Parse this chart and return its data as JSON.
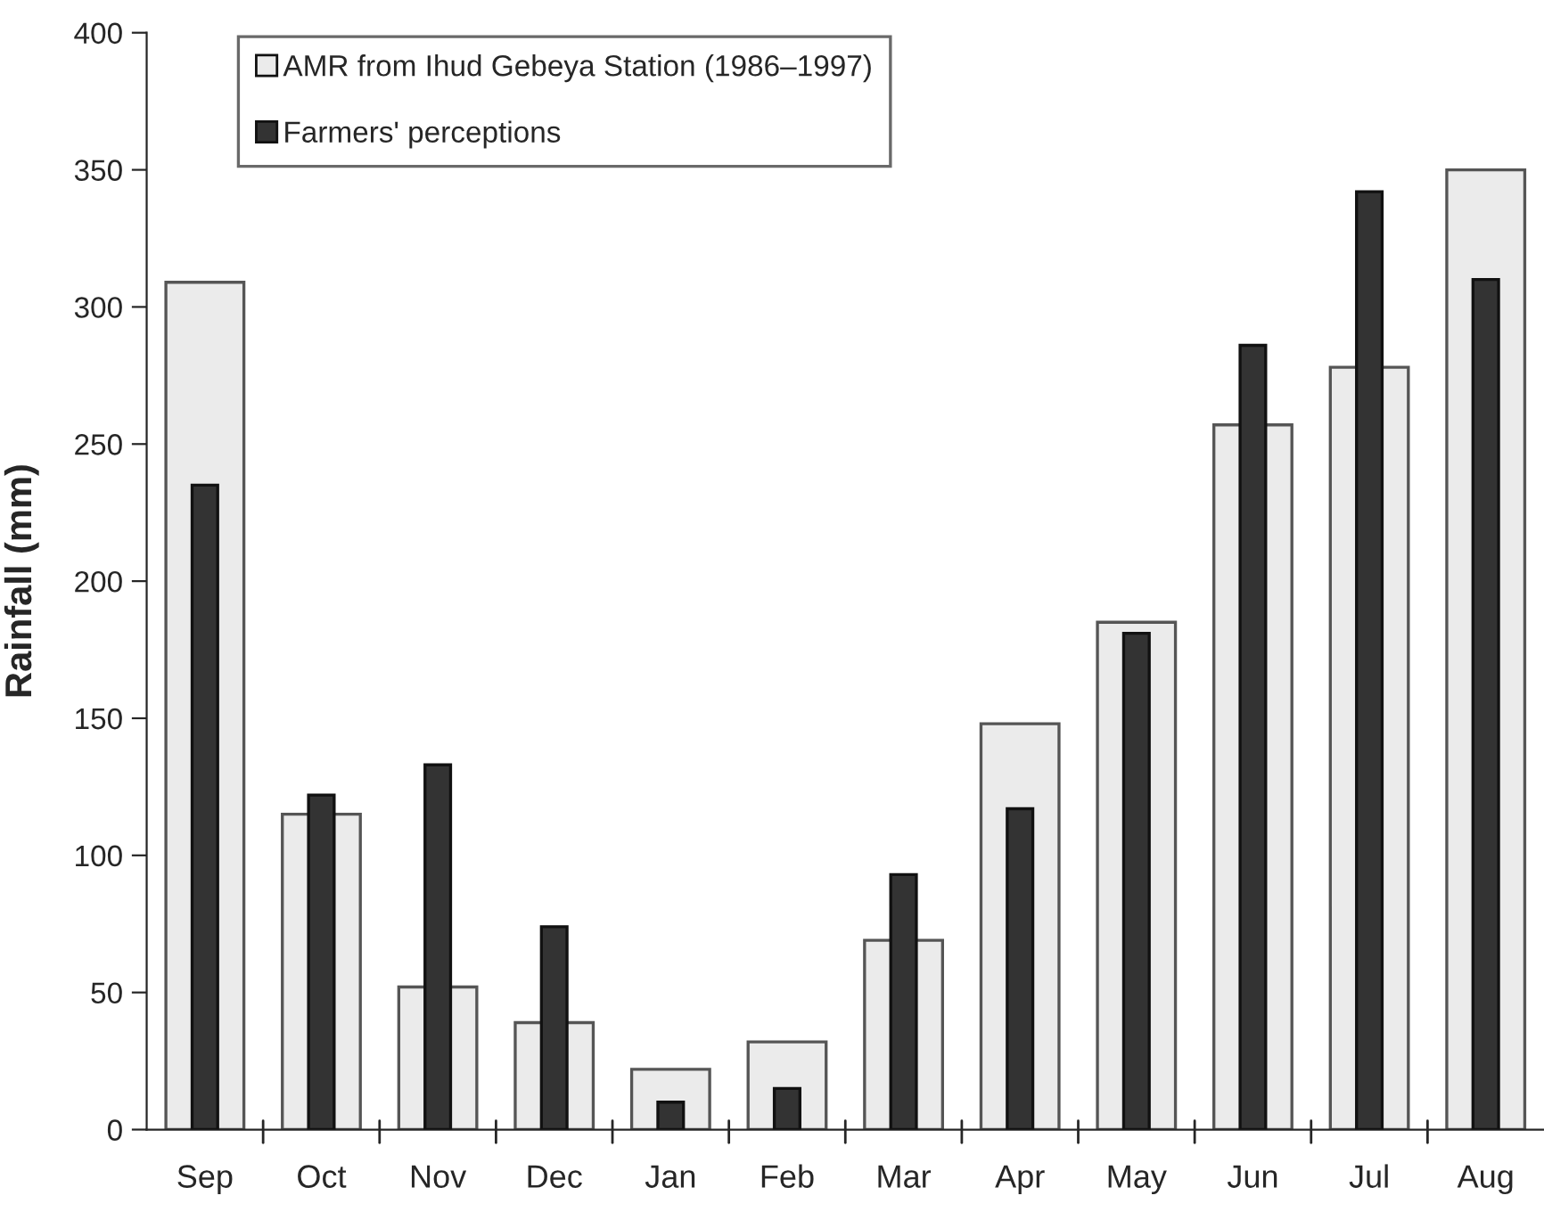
{
  "chart_data": {
    "type": "bar",
    "ylabel": "Rainfall (mm)",
    "categories": [
      "Sep",
      "Oct",
      "Nov",
      "Dec",
      "Jan",
      "Feb",
      "Mar",
      "Apr",
      "May",
      "Jun",
      "Jul",
      "Aug"
    ],
    "series": [
      {
        "name": "AMR from Ihud Gebeya Station (1986–1997)",
        "color": "#ebebeb",
        "values": [
          309,
          115,
          52,
          39,
          22,
          32,
          69,
          148,
          185,
          257,
          278,
          350
        ]
      },
      {
        "name": "Farmers' perceptions",
        "color": "#333333",
        "values": [
          235,
          122,
          133,
          74,
          10,
          15,
          93,
          117,
          181,
          286,
          342,
          310
        ]
      }
    ],
    "ylim": [
      0,
      400
    ],
    "yticks": [
      0,
      50,
      100,
      150,
      200,
      250,
      300,
      350,
      400
    ],
    "grid": false,
    "legend": "top left"
  }
}
